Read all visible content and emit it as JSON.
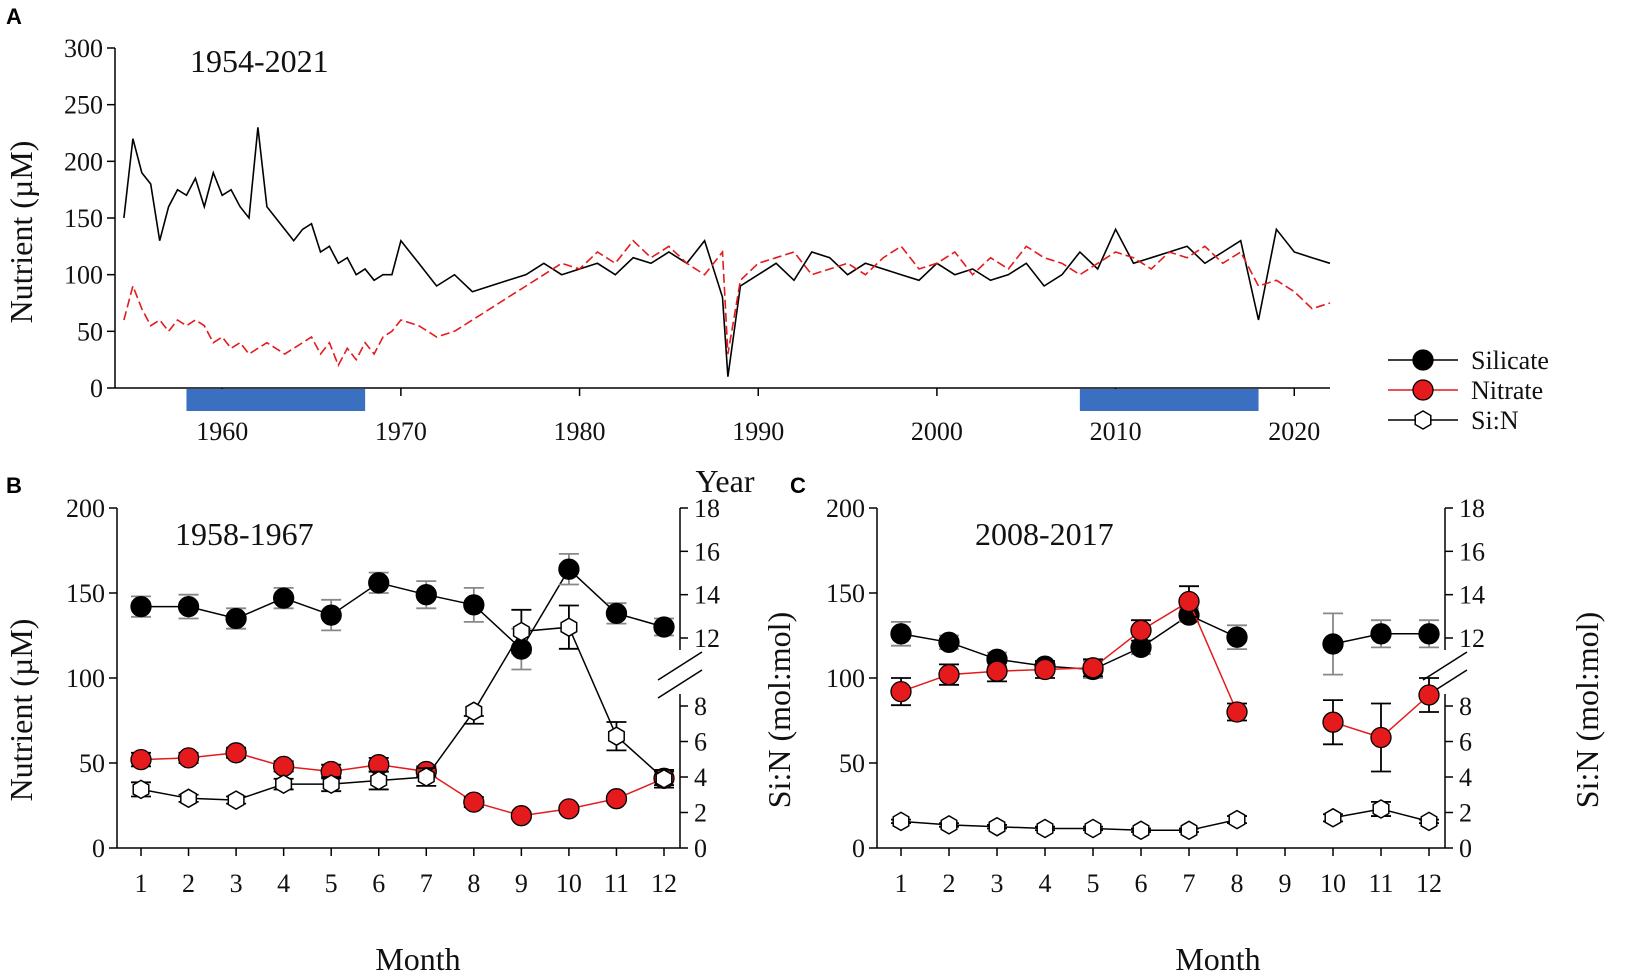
{
  "colors": {
    "silicate": "#000000",
    "nitrate": "#e41a1c",
    "ratio": "#000000",
    "highlight": "#3a6fc1",
    "errorbar": "#888888"
  },
  "legend": [
    {
      "key": "silicate",
      "label": "Silicate",
      "marker": "filled-circle",
      "color": "#000000"
    },
    {
      "key": "nitrate",
      "label": "Nitrate",
      "marker": "filled-circle",
      "color": "#e41a1c"
    },
    {
      "key": "ratio",
      "label": "Si:N",
      "marker": "open-hexagon",
      "color": "#000000"
    }
  ],
  "chart_data": [
    {
      "panel": "A",
      "type": "line",
      "period_label": "1954-2021",
      "xlabel": "Year",
      "ylabel": "Nutrient (µM)",
      "xlim": [
        1954,
        2022
      ],
      "ylim": [
        0,
        300
      ],
      "xticks": [
        1960,
        1970,
        1980,
        1990,
        2000,
        2010,
        2020
      ],
      "yticks": [
        0,
        50,
        100,
        150,
        200,
        250,
        300
      ],
      "highlight_periods": [
        [
          1958,
          1968
        ],
        [
          2008,
          2018
        ]
      ],
      "series": [
        {
          "name": "Silicate",
          "style": "solid",
          "color": "#000000",
          "x": [
            1954.5,
            1955,
            1955.5,
            1956,
            1956.5,
            1957,
            1957.5,
            1958,
            1958.5,
            1959,
            1959.5,
            1960,
            1960.5,
            1961,
            1961.5,
            1962,
            1962.5,
            1963,
            1963.5,
            1964,
            1964.5,
            1965,
            1965.5,
            1966,
            1966.5,
            1967,
            1967.5,
            1968,
            1968.5,
            1969,
            1969.5,
            1970,
            1971,
            1972,
            1973,
            1974,
            1975,
            1976,
            1977,
            1978,
            1979,
            1980,
            1981,
            1982,
            1983,
            1984,
            1985,
            1986,
            1987,
            1988,
            1988.3,
            1989,
            1990,
            1991,
            1992,
            1993,
            1994,
            1995,
            1996,
            1997,
            1998,
            1999,
            2000,
            2001,
            2002,
            2003,
            2004,
            2005,
            2006,
            2007,
            2008,
            2009,
            2010,
            2011,
            2012,
            2013,
            2014,
            2015,
            2016,
            2017,
            2018,
            2019,
            2020,
            2021,
            2022
          ],
          "values": [
            150,
            220,
            190,
            180,
            130,
            160,
            175,
            170,
            185,
            160,
            190,
            170,
            175,
            160,
            150,
            230,
            160,
            150,
            140,
            130,
            140,
            145,
            120,
            125,
            110,
            115,
            100,
            105,
            95,
            100,
            100,
            130,
            110,
            90,
            100,
            85,
            90,
            95,
            100,
            110,
            100,
            105,
            110,
            100,
            115,
            110,
            120,
            110,
            130,
            80,
            10,
            90,
            100,
            110,
            95,
            120,
            115,
            100,
            110,
            105,
            100,
            95,
            110,
            100,
            105,
            95,
            100,
            110,
            90,
            100,
            120,
            105,
            140,
            110,
            115,
            120,
            125,
            110,
            120,
            130,
            60,
            140,
            120,
            115,
            110
          ]
        },
        {
          "name": "Nitrate",
          "style": "dashed",
          "color": "#e41a1c",
          "x": [
            1954.5,
            1955,
            1955.5,
            1956,
            1956.5,
            1957,
            1957.5,
            1958,
            1958.5,
            1959,
            1959.5,
            1960,
            1960.5,
            1961,
            1961.5,
            1962,
            1962.5,
            1963,
            1963.5,
            1964,
            1964.5,
            1965,
            1965.5,
            1966,
            1966.5,
            1967,
            1967.5,
            1968,
            1968.5,
            1969,
            1969.5,
            1970,
            1971,
            1972,
            1973,
            1974,
            1975,
            1976,
            1977,
            1978,
            1979,
            1980,
            1981,
            1982,
            1983,
            1984,
            1985,
            1986,
            1987,
            1988,
            1988.3,
            1989,
            1990,
            1991,
            1992,
            1993,
            1994,
            1995,
            1996,
            1997,
            1998,
            1999,
            2000,
            2001,
            2002,
            2003,
            2004,
            2005,
            2006,
            2007,
            2008,
            2009,
            2010,
            2011,
            2012,
            2013,
            2014,
            2015,
            2016,
            2017,
            2018,
            2019,
            2020,
            2021,
            2022
          ],
          "values": [
            60,
            90,
            70,
            55,
            60,
            50,
            60,
            55,
            60,
            55,
            40,
            45,
            35,
            40,
            30,
            35,
            40,
            35,
            30,
            35,
            40,
            45,
            30,
            40,
            20,
            35,
            25,
            40,
            30,
            45,
            50,
            60,
            55,
            45,
            50,
            60,
            70,
            80,
            90,
            100,
            110,
            105,
            120,
            110,
            130,
            115,
            125,
            110,
            100,
            120,
            30,
            95,
            110,
            115,
            120,
            100,
            105,
            110,
            100,
            115,
            125,
            105,
            110,
            120,
            100,
            115,
            105,
            125,
            115,
            110,
            100,
            110,
            120,
            115,
            105,
            120,
            115,
            125,
            110,
            120,
            90,
            95,
            85,
            70,
            75
          ]
        }
      ]
    },
    {
      "panel": "B",
      "type": "line",
      "period_label": "1958-1967",
      "xlabel": "Month",
      "ylabel_left": "Nutrient (µM)",
      "ylabel_right": "Si:N (mol:mol)",
      "categories": [
        "1",
        "2",
        "3",
        "4",
        "5",
        "6",
        "7",
        "8",
        "9",
        "10",
        "11",
        "12"
      ],
      "ylim_left": [
        0,
        200
      ],
      "yticks_left": [
        0,
        50,
        100,
        150,
        200
      ],
      "yticks_right": [
        0,
        2,
        4,
        6,
        8,
        12,
        14,
        16,
        18
      ],
      "ylim_right_lower": [
        0,
        8
      ],
      "ylim_right_upper": [
        12,
        18
      ],
      "series": [
        {
          "name": "Silicate",
          "values": [
            142,
            142,
            135,
            147,
            137,
            156,
            149,
            143,
            117,
            164,
            138,
            130
          ],
          "errors": [
            6,
            7,
            6,
            6,
            9,
            6,
            8,
            10,
            12,
            9,
            6,
            5
          ]
        },
        {
          "name": "Nitrate",
          "values": [
            52,
            53,
            56,
            48,
            45,
            49,
            45,
            27,
            19,
            23,
            29,
            41
          ],
          "errors": [
            4,
            3,
            3,
            3,
            4,
            4,
            3,
            3,
            2,
            2,
            2,
            4
          ]
        },
        {
          "name": "Si:N",
          "values": [
            3.3,
            2.8,
            2.7,
            3.6,
            3.6,
            3.8,
            4.0,
            7.7,
            12.3,
            12.5,
            6.3,
            3.9
          ],
          "errors": [
            0.4,
            0.2,
            0.2,
            0.3,
            0.4,
            0.5,
            0.5,
            0.7,
            1.0,
            1.0,
            0.8,
            0.5
          ]
        }
      ]
    },
    {
      "panel": "C",
      "type": "line",
      "period_label": "2008-2017",
      "xlabel": "Month",
      "ylabel_right": "Si:N (mol:mol)",
      "categories": [
        "1",
        "2",
        "3",
        "4",
        "5",
        "6",
        "7",
        "8",
        "9",
        "10",
        "11",
        "12"
      ],
      "ylim_left": [
        0,
        200
      ],
      "yticks_left": [
        0,
        50,
        100,
        150,
        200
      ],
      "yticks_right": [
        0,
        2,
        4,
        6,
        8,
        12,
        14,
        16,
        18
      ],
      "ylim_right_lower": [
        0,
        8
      ],
      "ylim_right_upper": [
        12,
        18
      ],
      "series": [
        {
          "name": "Silicate",
          "values": [
            126,
            121,
            111,
            107,
            105,
            118,
            137,
            124,
            null,
            120,
            126,
            126
          ],
          "errors": [
            7,
            4,
            4,
            3,
            5,
            4,
            4,
            7,
            null,
            18,
            8,
            8
          ]
        },
        {
          "name": "Nitrate",
          "values": [
            92,
            102,
            104,
            105,
            106,
            128,
            145,
            80,
            null,
            74,
            65,
            90
          ],
          "errors": [
            8,
            6,
            6,
            5,
            5,
            6,
            9,
            5,
            null,
            13,
            20,
            10
          ]
        },
        {
          "name": "Si:N",
          "values": [
            1.5,
            1.3,
            1.2,
            1.1,
            1.1,
            1.0,
            1.0,
            1.6,
            null,
            1.7,
            2.2,
            1.5
          ],
          "errors": [
            0.1,
            0.1,
            0.1,
            0.1,
            0.1,
            0.1,
            0.1,
            0.2,
            null,
            0.2,
            0.4,
            0.1
          ]
        }
      ]
    }
  ]
}
